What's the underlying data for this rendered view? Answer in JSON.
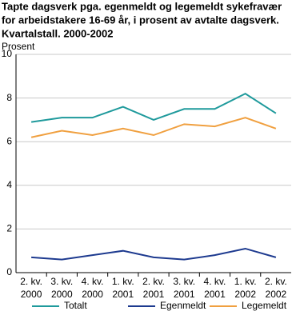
{
  "chart_data": {
    "type": "line",
    "title": [
      "Tapte dagsverk pga. egenmeldt og legemeldt sykefravær",
      "for arbeidstakere 16-69 år, i prosent av avtalte dagsverk.",
      "Kvartalstall. 2000-2002"
    ],
    "ylabel": "Prosent",
    "categories": [
      [
        "2. kv.",
        "2000"
      ],
      [
        "3. kv.",
        "2000"
      ],
      [
        "4. kv.",
        "2000"
      ],
      [
        "1. kv.",
        "2001"
      ],
      [
        "2. kv.",
        "2001"
      ],
      [
        "3. kv.",
        "2001"
      ],
      [
        "4. kv.",
        "2001"
      ],
      [
        "1. kv.",
        "2002"
      ],
      [
        "2. kv.",
        "2002"
      ]
    ],
    "series": [
      {
        "name": "Totalt",
        "color": "#1f9a9c",
        "values": [
          6.9,
          7.1,
          7.1,
          7.6,
          7.0,
          7.5,
          7.5,
          8.2,
          7.3
        ]
      },
      {
        "name": "Egenmeldt",
        "color": "#1d3a8f",
        "values": [
          0.7,
          0.6,
          0.8,
          1.0,
          0.7,
          0.6,
          0.8,
          1.1,
          0.7
        ]
      },
      {
        "name": "Legemeldt",
        "color": "#f0a040",
        "values": [
          6.2,
          6.5,
          6.3,
          6.6,
          6.3,
          6.8,
          6.7,
          7.1,
          6.6
        ]
      }
    ],
    "ylim": [
      0,
      10
    ],
    "yticks": [
      0,
      2,
      4,
      6,
      8,
      10
    ],
    "grid": true,
    "legend": "bottom"
  }
}
